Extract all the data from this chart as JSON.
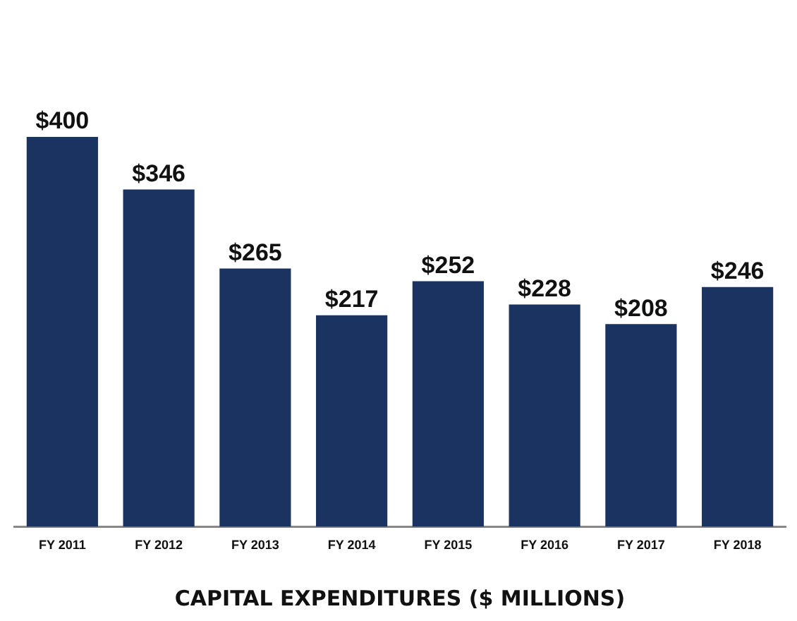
{
  "chart_data": {
    "type": "bar",
    "xlabel": "CAPITAL EXPENDITURES ($ MILLIONS)",
    "categories": [
      "FY 2011",
      "FY 2012",
      "FY 2013",
      "FY 2014",
      "FY 2015",
      "FY 2016",
      "FY 2017",
      "FY 2018"
    ],
    "values": [
      400,
      346,
      265,
      217,
      252,
      228,
      208,
      246
    ],
    "value_labels": [
      "$400",
      "$346",
      "$265",
      "$217",
      "$252",
      "$228",
      "$208",
      "$246"
    ],
    "color": "#1b3360",
    "ylim": [
      0,
      400
    ],
    "tick_labels": "x",
    "grid": false,
    "legend": false
  }
}
